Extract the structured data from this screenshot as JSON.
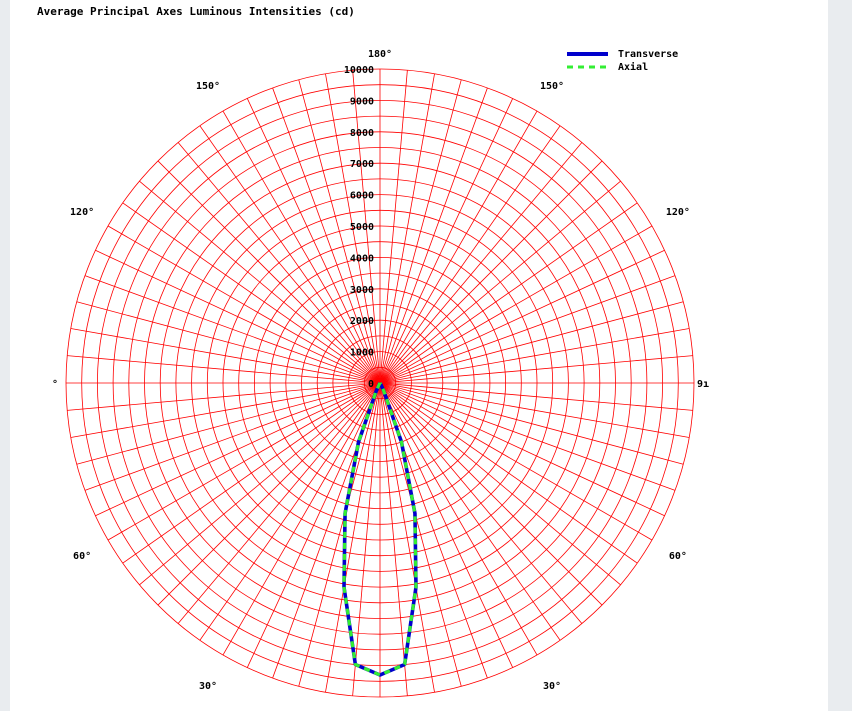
{
  "title": "Average Principal Axes Luminous Intensities (cd)",
  "chart_data": {
    "type": "polar",
    "title": "Average Principal Axes Luminous Intensities (cd)",
    "radial_ticks": [
      "0",
      "1000",
      "2000",
      "3000",
      "4000",
      "5000",
      "6000",
      "7000",
      "8000",
      "9000",
      "10000"
    ],
    "rlim": [
      0,
      10000
    ],
    "grid": true,
    "angle_labels": [
      {
        "text": "180°",
        "angle": 180
      },
      {
        "text": "150°",
        "angle": 150
      },
      {
        "text": "150°",
        "angle": -150
      },
      {
        "text": "120°",
        "angle": 120
      },
      {
        "text": "120°",
        "angle": -120
      },
      {
        "text": "°",
        "angle": 90
      },
      {
        "text": "9ı",
        "angle": -90
      },
      {
        "text": "60°",
        "angle": 60
      },
      {
        "text": "60°",
        "angle": -60
      },
      {
        "text": "30°",
        "angle": 30
      },
      {
        "text": "30°",
        "angle": -30
      }
    ],
    "legend": {
      "position": "top-right"
    },
    "series": [
      {
        "name": "Transverse",
        "color": "#0000cc",
        "style": "solid",
        "angles": [
          -90,
          -80,
          -70,
          -60,
          -50,
          -40,
          -35,
          -30,
          -25,
          -20,
          -15,
          -10,
          -5,
          0,
          5,
          10,
          15,
          20,
          25,
          30,
          35,
          40,
          50,
          60,
          70,
          80,
          90
        ],
        "values": [
          0,
          0,
          0,
          0,
          0,
          0,
          10,
          50,
          300,
          2000,
          4300,
          6600,
          9000,
          9300,
          9000,
          6600,
          4300,
          2000,
          300,
          50,
          10,
          0,
          0,
          0,
          0,
          0,
          0
        ]
      },
      {
        "name": "Axial",
        "color": "#33ee33",
        "style": "dashed",
        "angles": [
          -90,
          -80,
          -70,
          -60,
          -50,
          -40,
          -35,
          -30,
          -25,
          -20,
          -15,
          -10,
          -5,
          0,
          5,
          10,
          15,
          20,
          25,
          30,
          35,
          40,
          50,
          60,
          70,
          80,
          90
        ],
        "values": [
          0,
          0,
          0,
          0,
          0,
          0,
          10,
          50,
          300,
          2000,
          4300,
          6600,
          9000,
          9300,
          9000,
          6600,
          4300,
          2000,
          300,
          50,
          10,
          0,
          0,
          0,
          0,
          0,
          0
        ]
      }
    ]
  }
}
